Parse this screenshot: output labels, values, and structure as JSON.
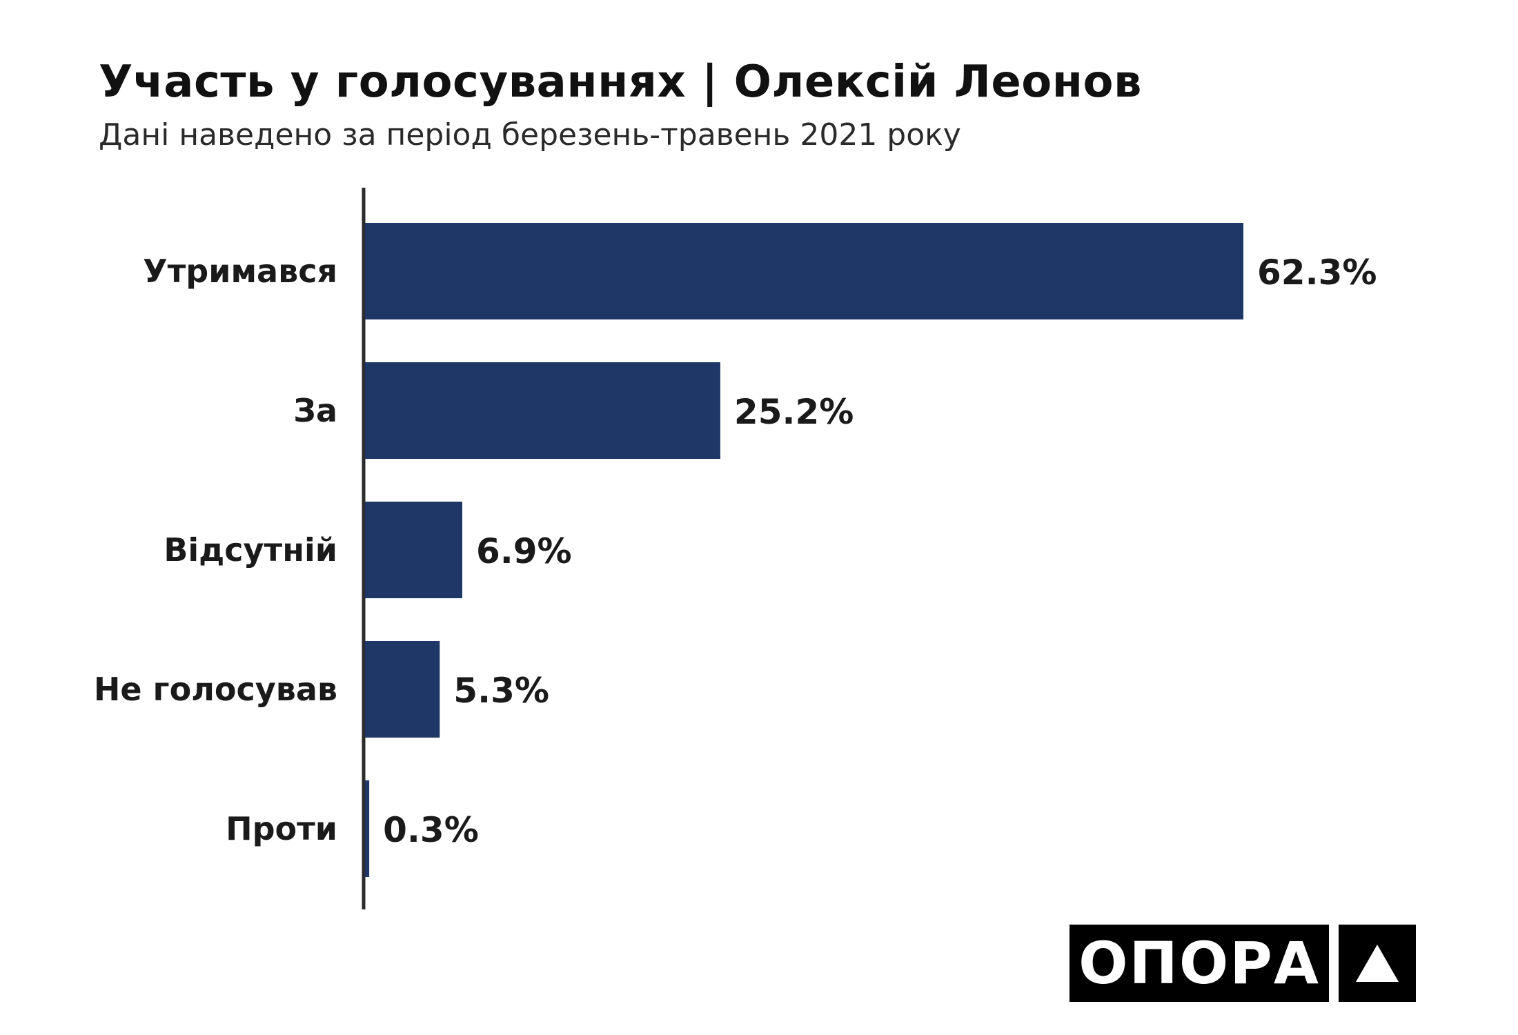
{
  "header": {
    "title": "Участь у голосуваннях | Олексій Леонов",
    "subtitle": "Дані наведено за період березень-травень 2021 року"
  },
  "chart_data": {
    "type": "bar",
    "orientation": "horizontal",
    "title": "Участь у голосуваннях | Олексій Леонов",
    "subtitle": "Дані наведено за період березень-травень 2021 року",
    "categories": [
      "Утримався",
      "За",
      "Відсутній",
      "Не голосував",
      "Проти"
    ],
    "values": [
      62.3,
      25.2,
      6.9,
      5.3,
      0.3
    ],
    "value_labels": [
      "62.3%",
      "25.2%",
      "6.9%",
      "5.3%",
      "0.3%"
    ],
    "unit": "%",
    "grid": false,
    "legend": "none",
    "bar_color": "#1f3766",
    "axis_color": "#2b2b2b"
  },
  "logo": {
    "text": "ОПОРА",
    "mark_icon": "triangle-icon"
  }
}
